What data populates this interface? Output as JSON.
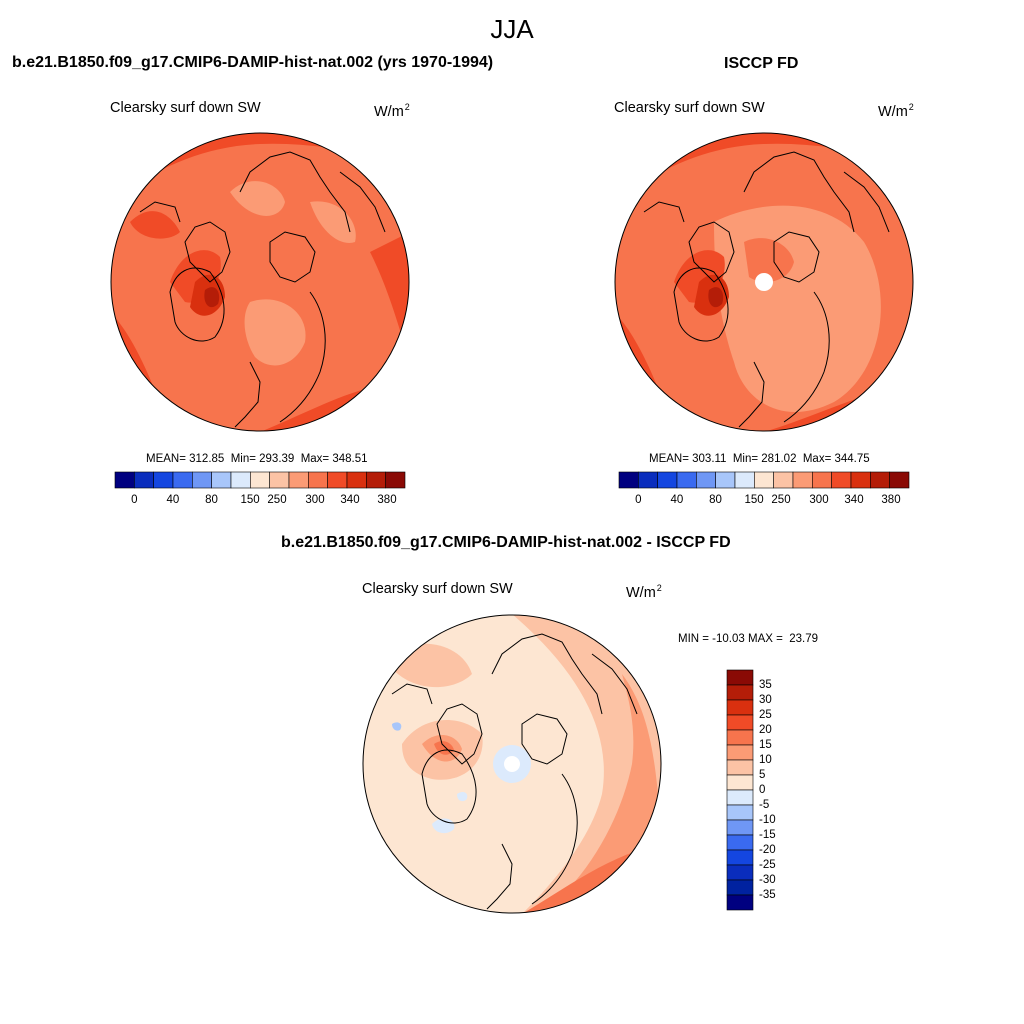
{
  "title": "JJA",
  "panel_top_left": {
    "title": "b.e21.B1850.f09_g17.CMIP6-DAMIP-hist-nat.002 (yrs 1970-1994)",
    "variable": "Clearsky surf down SW",
    "units_base": "W/m",
    "units_exp": "2",
    "stats": "MEAN= 312.85  Min= 293.39  Max= 348.51",
    "mean": 312.85,
    "min": 293.39,
    "max": 348.51
  },
  "panel_top_right": {
    "title": "ISCCP FD",
    "variable": "Clearsky surf down SW",
    "units_base": "W/m",
    "units_exp": "2",
    "stats": "MEAN= 303.11  Min= 281.02  Max= 344.75",
    "mean": 303.11,
    "min": 281.02,
    "max": 344.75
  },
  "panel_bottom": {
    "title": "b.e21.B1850.f09_g17.CMIP6-DAMIP-hist-nat.002 - ISCCP FD",
    "variable": "Clearsky surf down SW",
    "units_base": "W/m",
    "units_exp": "2",
    "stats": "MIN = -10.03 MAX =  23.79",
    "min": -10.03,
    "max": 23.79
  },
  "colorbar_abs": {
    "labels": [
      "0",
      "40",
      "80",
      "150",
      "250",
      "300",
      "340",
      "380"
    ],
    "colors": [
      "#000080",
      "#0a2dbd",
      "#1446e0",
      "#3a6af0",
      "#6f97f5",
      "#a8c6fa",
      "#dceafc",
      "#fde6d2",
      "#fcc3a5",
      "#fb9b75",
      "#f7744d",
      "#f04b27",
      "#d9300f",
      "#b41d08",
      "#8a0a05"
    ]
  },
  "colorbar_diff": {
    "labels": [
      "35",
      "30",
      "25",
      "20",
      "15",
      "10",
      "5",
      "0",
      "-5",
      "-10",
      "-15",
      "-20",
      "-25",
      "-30",
      "-35"
    ],
    "colors_top_to_bottom": [
      "#8a0a05",
      "#b41d08",
      "#d9300f",
      "#f04b27",
      "#f7744d",
      "#fb9b75",
      "#fcc3a5",
      "#fde6d2",
      "#dceafc",
      "#a8c6fa",
      "#6f97f5",
      "#3a6af0",
      "#1446e0",
      "#0a2dbd",
      "#0022a0",
      "#000080"
    ]
  },
  "map_colors": {
    "abs_300_340": "#f7744d",
    "abs_340_380": "#f04b27",
    "abs_250_300": "#fb9b75",
    "abs_high": "#d9300f",
    "diff_0_5": "#fde6d2",
    "diff_5_10": "#fcc3a5",
    "diff_10_15": "#fb9b75",
    "diff_15_20": "#f7744d",
    "diff_neg": "#dceafc"
  }
}
